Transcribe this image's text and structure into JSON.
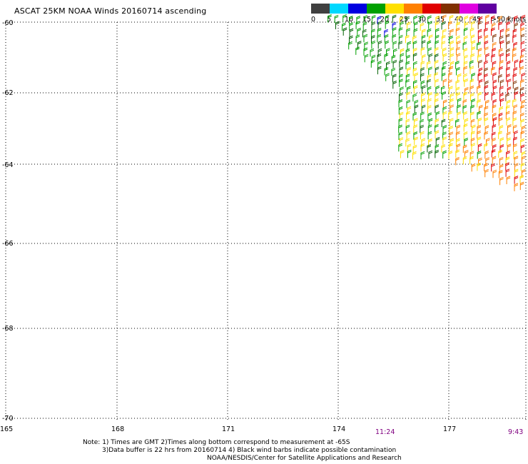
{
  "title": "ASCAT 25KM NOAA Winds 20160714 ascending",
  "color_scale": {
    "labels": [
      "0",
      "5",
      "10",
      "15",
      "20",
      "25",
      "30",
      "35",
      "40",
      "45",
      ">50 knots"
    ],
    "colors": [
      "#404040",
      "#808080",
      "#00d8ff",
      "#0000e0",
      "#00a000",
      "#ffe000",
      "#ff8000",
      "#e00000",
      "#803000",
      "#e000e0",
      "#6000a0"
    ]
  },
  "map": {
    "lat_labels": [
      "-60",
      "-62",
      "-64",
      "-66",
      "-68",
      "-70"
    ],
    "lon_labels": [
      "165",
      "168",
      "171",
      "174",
      "177"
    ],
    "time_labels": [
      "11:24",
      "9:43"
    ],
    "barb_colors": {
      "green": "#00a000",
      "dark_green": "#006000",
      "yellow": "#ffe000",
      "orange": "#ff8000",
      "red": "#e00000",
      "blue": "#0000e0",
      "brown": "#803000"
    }
  },
  "notes": {
    "line1": "Note: 1) Times are GMT 2)Times along bottom correspond to measurement at -65S",
    "line2": "3)Data buffer is 22 hrs from 20160714 4) Black wind barbs indicate possible contamination",
    "line3": "NOAA/NESDIS/Center for Satellite Applications and Research"
  }
}
